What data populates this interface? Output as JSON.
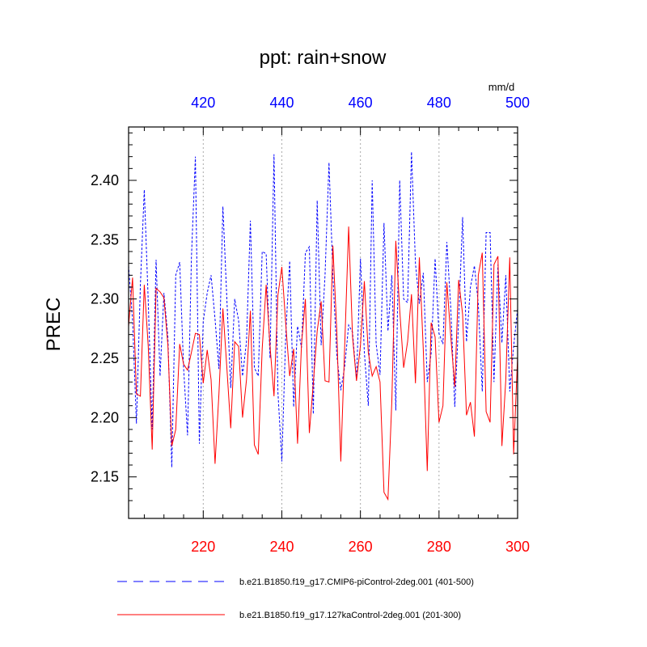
{
  "chart_data": {
    "type": "line",
    "title": "ppt: rain+snow",
    "ylabel": "PREC",
    "units_label": "mm/d",
    "xlabel": "",
    "ylim": [
      2.115,
      2.445
    ],
    "yticks": [
      2.15,
      2.2,
      2.25,
      2.3,
      2.35,
      2.4
    ],
    "ytick_labels": [
      "2.15",
      "2.20",
      "2.25",
      "2.30",
      "2.35",
      "2.40"
    ],
    "bottom_axis": {
      "range": [
        201,
        300
      ],
      "ticks": [
        220,
        240,
        260,
        280,
        300
      ],
      "labels": [
        "220",
        "240",
        "260",
        "280",
        "300"
      ],
      "color": "#ff0000"
    },
    "top_axis": {
      "range": [
        401,
        500
      ],
      "ticks": [
        420,
        440,
        460,
        480,
        500
      ],
      "labels": [
        "420",
        "440",
        "460",
        "480",
        "500"
      ],
      "color": "#0000ff"
    },
    "grid_x": [
      220,
      240,
      260,
      280
    ],
    "series": [
      {
        "name": "b.e21.B1850.f19_g17.CMIP6-piControl-2deg.001 (401-500)",
        "color": "#0000ff",
        "style": "dashed",
        "axis": "top",
        "x_start": 401,
        "values": [
          2.328,
          2.282,
          2.195,
          2.312,
          2.392,
          2.298,
          2.19,
          2.333,
          2.235,
          2.305,
          2.268,
          2.158,
          2.32,
          2.331,
          2.242,
          2.185,
          2.335,
          2.42,
          2.178,
          2.281,
          2.305,
          2.32,
          2.283,
          2.241,
          2.378,
          2.3,
          2.225,
          2.3,
          2.282,
          2.235,
          2.264,
          2.366,
          2.242,
          2.235,
          2.34,
          2.338,
          2.25,
          2.422,
          2.222,
          2.163,
          2.27,
          2.332,
          2.209,
          2.277,
          2.259,
          2.339,
          2.344,
          2.203,
          2.383,
          2.261,
          2.32,
          2.415,
          2.32,
          2.252,
          2.223,
          2.243,
          2.278,
          2.272,
          2.232,
          2.334,
          2.255,
          2.21,
          2.4,
          2.262,
          2.236,
          2.364,
          2.273,
          2.32,
          2.206,
          2.4,
          2.3,
          2.297,
          2.424,
          2.33,
          2.296,
          2.322,
          2.23,
          2.254,
          2.334,
          2.271,
          2.262,
          2.348,
          2.292,
          2.209,
          2.282,
          2.369,
          2.264,
          2.31,
          2.328,
          2.296,
          2.222,
          2.356,
          2.356,
          2.23,
          2.329,
          2.263,
          2.32,
          2.222,
          2.26,
          2.292
        ]
      },
      {
        "name": "b.e21.B1850.f19_g17.127kaControl-2deg.001 (201-300)",
        "color": "#ff0000",
        "style": "solid",
        "axis": "bottom",
        "x_start": 201,
        "values": [
          2.277,
          2.318,
          2.22,
          2.218,
          2.312,
          2.26,
          2.173,
          2.309,
          2.306,
          2.301,
          2.261,
          2.176,
          2.19,
          2.262,
          2.245,
          2.24,
          2.255,
          2.271,
          2.27,
          2.229,
          2.257,
          2.232,
          2.161,
          2.22,
          2.292,
          2.242,
          2.191,
          2.264,
          2.26,
          2.2,
          2.232,
          2.29,
          2.177,
          2.169,
          2.258,
          2.312,
          2.26,
          2.218,
          2.303,
          2.327,
          2.279,
          2.235,
          2.258,
          2.178,
          2.262,
          2.3,
          2.187,
          2.229,
          2.273,
          2.298,
          2.231,
          2.23,
          2.345,
          2.272,
          2.163,
          2.26,
          2.361,
          2.268,
          2.231,
          2.261,
          2.315,
          2.255,
          2.235,
          2.243,
          2.23,
          2.137,
          2.131,
          2.214,
          2.349,
          2.291,
          2.242,
          2.264,
          2.304,
          2.229,
          2.335,
          2.257,
          2.155,
          2.28,
          2.268,
          2.196,
          2.21,
          2.314,
          2.268,
          2.226,
          2.316,
          2.287,
          2.202,
          2.213,
          2.184,
          2.32,
          2.339,
          2.205,
          2.196,
          2.329,
          2.336,
          2.176,
          2.232,
          2.335,
          2.169,
          2.252
        ]
      }
    ]
  }
}
